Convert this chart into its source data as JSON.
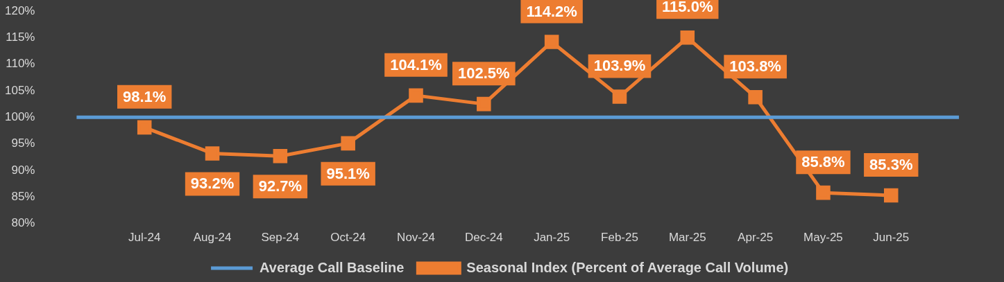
{
  "chart_data": {
    "type": "line",
    "categories": [
      null,
      "Jul-24",
      "Aug-24",
      "Sep-24",
      "Oct-24",
      "Nov-24",
      "Dec-24",
      "Jan-25",
      "Feb-25",
      "Mar-25",
      "Apr-25",
      "May-25",
      "Jun-25",
      null
    ],
    "series": [
      {
        "name": "Average Call Baseline",
        "color": "#5b9bd5",
        "marker": "none",
        "values": [
          100,
          100,
          100,
          100,
          100,
          100,
          100,
          100,
          100,
          100,
          100,
          100,
          100,
          100
        ]
      },
      {
        "name": "Seasonal Index (Percent of Average Call Volume)",
        "color": "#ed7d31",
        "marker": "square",
        "values": [
          null,
          98.1,
          93.2,
          92.7,
          95.1,
          104.1,
          102.5,
          114.2,
          103.9,
          115.0,
          103.8,
          85.8,
          85.3,
          null
        ],
        "value_labels": [
          null,
          "98.1%",
          "93.2%",
          "92.7%",
          "95.1%",
          "104.1%",
          "102.5%",
          "114.2%",
          "103.9%",
          "115.0%",
          "103.8%",
          "85.8%",
          "85.3%",
          null
        ]
      }
    ],
    "ylim": [
      80,
      120
    ],
    "yticks": [
      {
        "value": 80,
        "label": "80%"
      },
      {
        "value": 85,
        "label": "85%"
      },
      {
        "value": 90,
        "label": "90%"
      },
      {
        "value": 95,
        "label": "95%"
      },
      {
        "value": 100,
        "label": "100%"
      },
      {
        "value": 105,
        "label": "105%"
      },
      {
        "value": 110,
        "label": "110%"
      },
      {
        "value": 115,
        "label": "115%"
      },
      {
        "value": 120,
        "label": "120%"
      }
    ],
    "grid": false,
    "legend": "bottom",
    "line_style": "solid"
  }
}
